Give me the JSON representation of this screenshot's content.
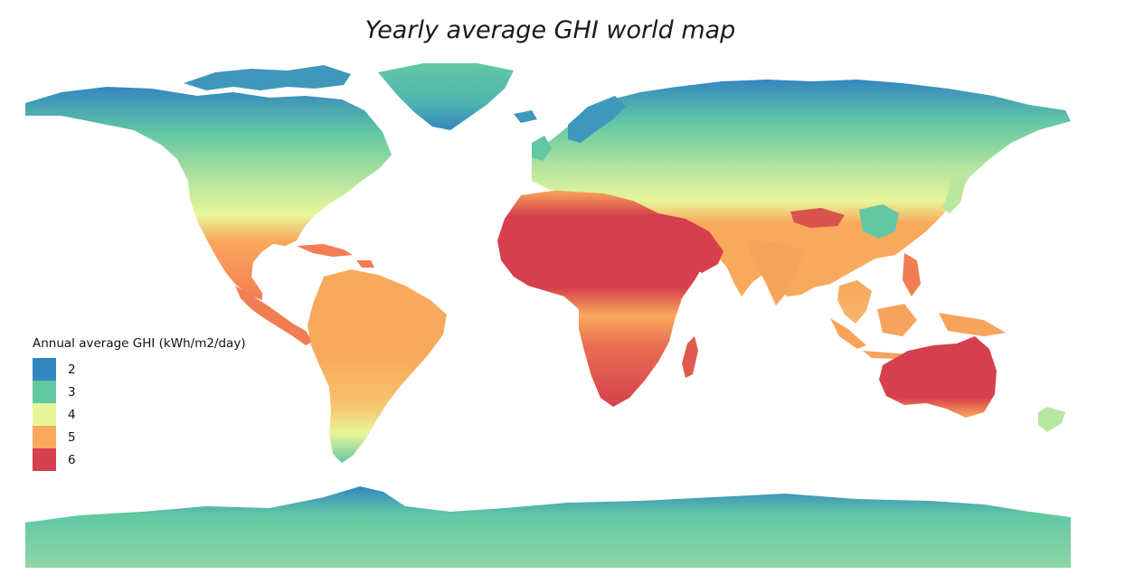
{
  "title": "Yearly average GHI world map",
  "legend": {
    "title": "Annual average GHI (kWh/m2/day)",
    "items": [
      {
        "label": "2",
        "color": "#3486c0"
      },
      {
        "label": "3",
        "color": "#62c8a3"
      },
      {
        "label": "4",
        "color": "#e8f69a"
      },
      {
        "label": "5",
        "color": "#f9a95c"
      },
      {
        "label": "6",
        "color": "#d63f4d"
      }
    ]
  },
  "palette": {
    "polar": "#3486c0",
    "cool": "#62c8a3",
    "mild": "#b9e6a0",
    "pale": "#e8f69a",
    "warm": "#f9a95c",
    "hot": "#d63f4d",
    "ocean": "#ffffff"
  }
}
